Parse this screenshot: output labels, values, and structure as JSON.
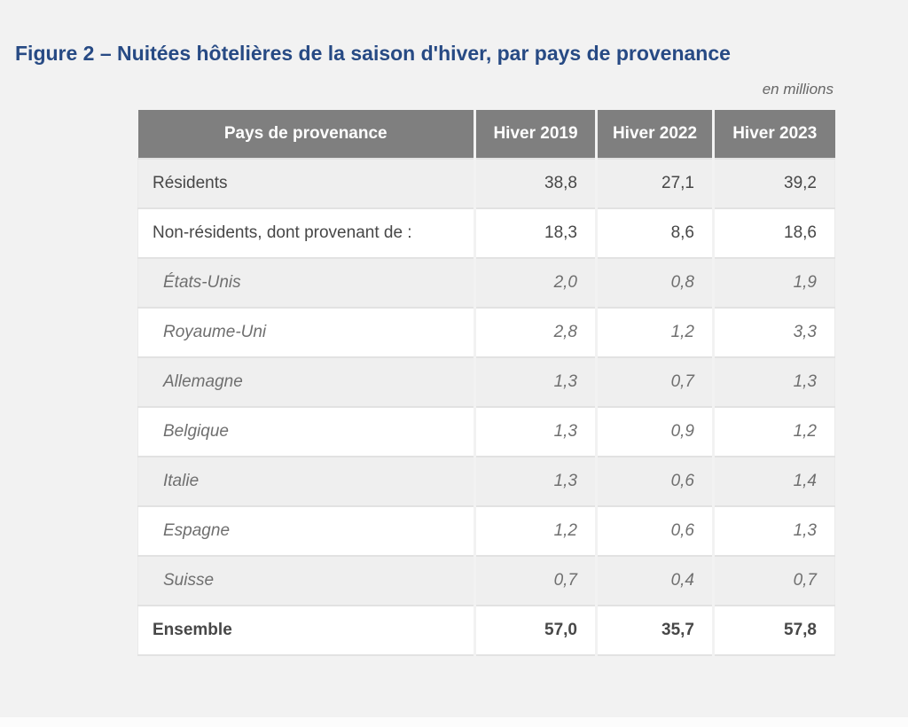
{
  "page": {
    "background_color": "#f2f2f2",
    "accent_blue": "#274a84",
    "header_gray": "#7f7f7f",
    "stripe_gray": "#efefef"
  },
  "figure": {
    "title": "Figure 2 – Nuitées hôtelières de la saison d'hiver, par pays de provenance",
    "unit_note": "en millions"
  },
  "chart_data": {
    "type": "table",
    "title": "Figure 2 – Nuitées hôtelières de la saison d'hiver, par pays de provenance",
    "unit": "en millions",
    "columns": [
      "Pays de provenance",
      "Hiver 2019",
      "Hiver 2022",
      "Hiver 2023"
    ],
    "rows": [
      {
        "label": "Résidents",
        "style": "normal",
        "values": [
          "38,8",
          "27,1",
          "39,2"
        ]
      },
      {
        "label": "Non-résidents, dont provenant de :",
        "style": "normal",
        "values": [
          "18,3",
          "8,6",
          "18,6"
        ]
      },
      {
        "label": "États-Unis",
        "style": "country",
        "values": [
          "2,0",
          "0,8",
          "1,9"
        ]
      },
      {
        "label": "Royaume-Uni",
        "style": "country",
        "values": [
          "2,8",
          "1,2",
          "3,3"
        ]
      },
      {
        "label": "Allemagne",
        "style": "country",
        "values": [
          "1,3",
          "0,7",
          "1,3"
        ]
      },
      {
        "label": "Belgique",
        "style": "country",
        "values": [
          "1,3",
          "0,9",
          "1,2"
        ]
      },
      {
        "label": "Italie",
        "style": "country",
        "values": [
          "1,3",
          "0,6",
          "1,4"
        ]
      },
      {
        "label": "Espagne",
        "style": "country",
        "values": [
          "1,2",
          "0,6",
          "1,3"
        ]
      },
      {
        "label": "Suisse",
        "style": "country",
        "values": [
          "0,7",
          "0,4",
          "0,7"
        ]
      },
      {
        "label": "Ensemble",
        "style": "total",
        "values": [
          "57,0",
          "35,7",
          "57,8"
        ]
      }
    ]
  }
}
